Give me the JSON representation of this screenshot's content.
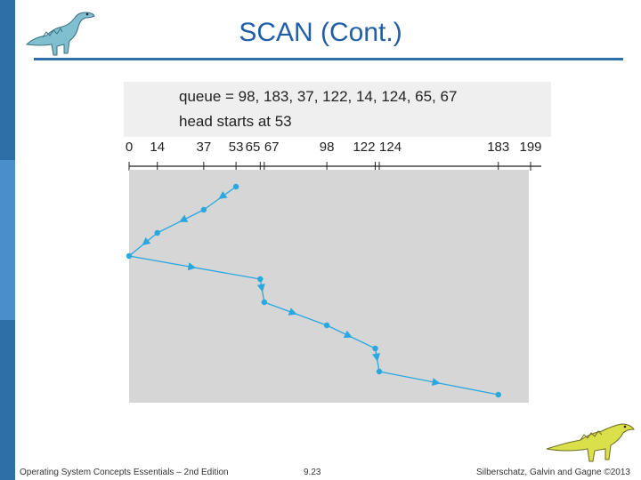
{
  "slide": {
    "title": "SCAN (Cont.)",
    "footer_left": "Operating System Concepts Essentials – 2nd Edition",
    "footer_page": "9.23",
    "footer_right": "Silberschatz, Galvin and Gagne ©2013"
  },
  "diagram": {
    "queue_text": "queue = 98, 183, 37, 122, 14, 124, 65, 67",
    "head_text": "head starts at 53",
    "axis_labels": [
      "0",
      "14",
      "37",
      "53",
      "65",
      "67",
      "98",
      "122",
      "124",
      "183",
      "199"
    ],
    "axis_min": 0,
    "axis_max": 199,
    "path": [
      53,
      37,
      14,
      0,
      65,
      67,
      98,
      122,
      124,
      183
    ],
    "colors": {
      "line": "#28a8e0",
      "panel": "#d6d6d6",
      "ink": "#222222"
    }
  },
  "icons": [
    "dinosaur-icon",
    "dinosaur-icon"
  ]
}
